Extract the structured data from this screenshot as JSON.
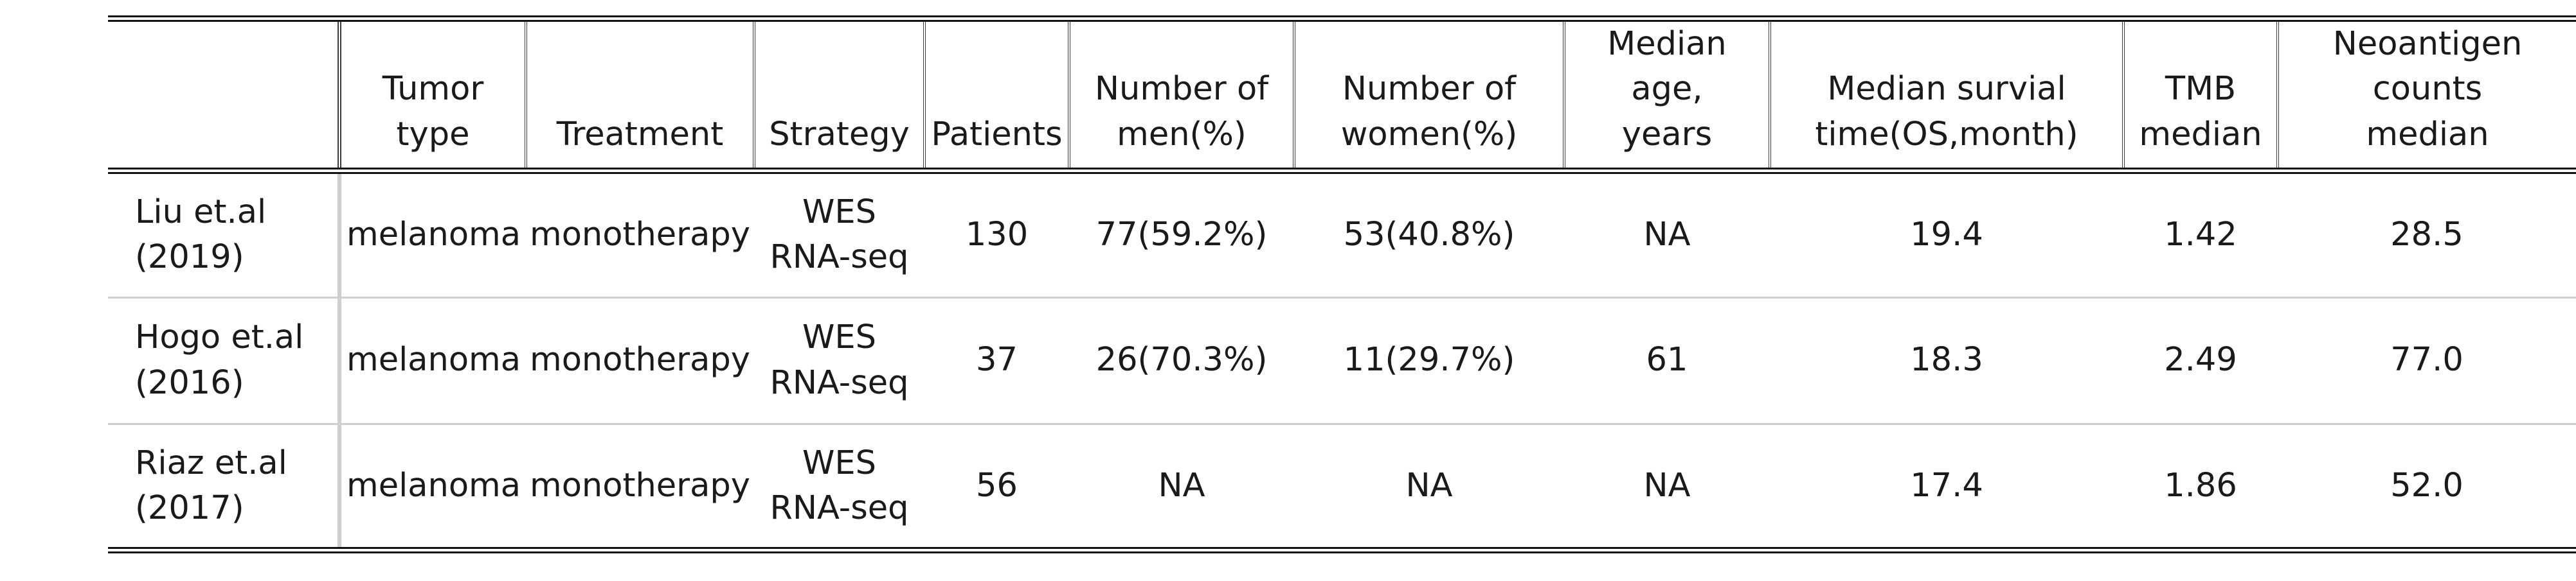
{
  "table": {
    "columns": [
      {
        "key": "study",
        "lines": [
          "",
          ""
        ]
      },
      {
        "key": "tumor_type",
        "lines": [
          "",
          "Tumor type"
        ]
      },
      {
        "key": "treatment",
        "lines": [
          "",
          "Treatment"
        ]
      },
      {
        "key": "strategy",
        "lines": [
          "",
          "Strategy"
        ]
      },
      {
        "key": "patients",
        "lines": [
          "",
          "Patients"
        ]
      },
      {
        "key": "men",
        "lines": [
          "Number of",
          "men(%)"
        ]
      },
      {
        "key": "women",
        "lines": [
          "Number of",
          "women(%)"
        ]
      },
      {
        "key": "median_age",
        "lines": [
          "Median age,",
          "years"
        ]
      },
      {
        "key": "median_survival",
        "lines": [
          "Median survial",
          "time(OS,month)"
        ]
      },
      {
        "key": "tmb",
        "lines": [
          "TMB",
          "median"
        ]
      },
      {
        "key": "neoantigen",
        "lines": [
          "Neoantigen counts",
          "median"
        ]
      }
    ],
    "rows": [
      {
        "study": [
          "Liu et.al",
          "(2019)"
        ],
        "tumor_type": "melanoma",
        "treatment": "monotherapy",
        "strategy": [
          "WES",
          "RNA-seq"
        ],
        "patients": "130",
        "men": "77(59.2%)",
        "women": "53(40.8%)",
        "median_age": "NA",
        "median_survival": "19.4",
        "tmb": "1.42",
        "neoantigen": "28.5"
      },
      {
        "study": [
          "Hogo et.al",
          "(2016)"
        ],
        "tumor_type": "melanoma",
        "treatment": "monotherapy",
        "strategy": [
          "WES",
          "RNA-seq"
        ],
        "patients": "37",
        "men": "26(70.3%)",
        "women": "11(29.7%)",
        "median_age": "61",
        "median_survival": "18.3",
        "tmb": "2.49",
        "neoantigen": "77.0"
      },
      {
        "study": [
          "Riaz et.al",
          "(2017)"
        ],
        "tumor_type": "melanoma",
        "treatment": "monotherapy",
        "strategy": [
          "WES",
          "RNA-seq"
        ],
        "patients": "56",
        "men": "NA",
        "women": "NA",
        "median_age": "NA",
        "median_survival": "17.4",
        "tmb": "1.86",
        "neoantigen": "52.0"
      }
    ]
  }
}
